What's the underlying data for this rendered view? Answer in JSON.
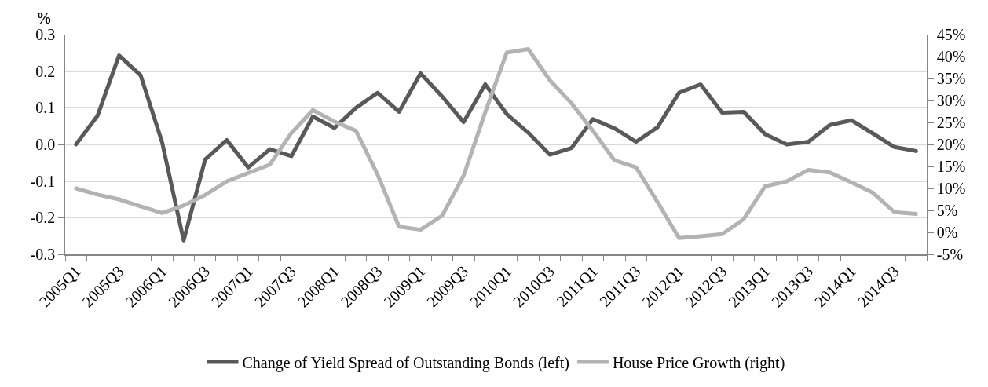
{
  "chart_data": {
    "type": "line",
    "ylabel": "%",
    "categories": [
      "2005Q1",
      null,
      "2005Q3",
      null,
      "2006Q1",
      null,
      "2006Q3",
      null,
      "2007Q1",
      null,
      "2007Q3",
      null,
      "2008Q1",
      null,
      "2008Q3",
      null,
      "2009Q1",
      null,
      "2009Q3",
      null,
      "2010Q1",
      null,
      "2010Q3",
      null,
      "2011Q1",
      null,
      "2011Q3",
      null,
      "2012Q1",
      null,
      "2012Q3",
      null,
      "2013Q1",
      null,
      "2013Q3",
      null,
      "2014Q1",
      null,
      "2014Q3",
      null
    ],
    "series": [
      {
        "name": "Change of Yield Spread of Outstanding Bonds (left)",
        "color": "#595959",
        "values": [
          0.0,
          0.078,
          0.243,
          0.189,
          0.006,
          -0.262,
          -0.041,
          0.012,
          -0.063,
          -0.013,
          -0.032,
          0.076,
          0.045,
          0.1,
          0.141,
          0.089,
          0.194,
          0.131,
          0.061,
          0.164,
          0.083,
          0.032,
          -0.028,
          -0.01,
          0.069,
          0.044,
          0.007,
          0.047,
          0.141,
          0.164,
          0.087,
          0.089,
          0.028,
          0.0,
          0.007,
          0.053,
          0.066,
          0.03,
          -0.007,
          -0.018
        ]
      },
      {
        "name": "House Price Growth (right)",
        "color": "#b3b3b3",
        "axis": "y2",
        "values": [
          10.0,
          8.6,
          7.5,
          5.9,
          4.4,
          6.1,
          8.5,
          11.6,
          13.5,
          15.4,
          22.6,
          27.8,
          25.2,
          23.1,
          13.2,
          1.3,
          0.6,
          3.8,
          12.9,
          27.3,
          40.9,
          41.7,
          34.6,
          29.4,
          23.1,
          16.4,
          14.8,
          6.9,
          -1.3,
          -0.9,
          -0.4,
          3.0,
          10.5,
          11.6,
          14.2,
          13.6,
          11.4,
          9.0,
          4.6,
          4.2
        ]
      }
    ],
    "ylim": [
      -0.3,
      0.3
    ],
    "yticks": [
      {
        "value": -0.3,
        "label": "-0.3"
      },
      {
        "value": -0.2,
        "label": "-0.2"
      },
      {
        "value": -0.1,
        "label": "-0.1"
      },
      {
        "value": 0,
        "label": "0.0"
      },
      {
        "value": 0.1,
        "label": "0.1"
      },
      {
        "value": 0.2,
        "label": "0.2"
      },
      {
        "value": 0.3,
        "label": "0.3"
      }
    ],
    "y2lim": [
      -5,
      45
    ],
    "y2ticks": [
      {
        "value": -5,
        "label": "-5%"
      },
      {
        "value": 0,
        "label": "0%"
      },
      {
        "value": 5,
        "label": "5%"
      },
      {
        "value": 10,
        "label": "10%"
      },
      {
        "value": 15,
        "label": "15%"
      },
      {
        "value": 20,
        "label": "20%"
      },
      {
        "value": 25,
        "label": "25%"
      },
      {
        "value": 30,
        "label": "30%"
      },
      {
        "value": 35,
        "label": "35%"
      },
      {
        "value": 40,
        "label": "40%"
      },
      {
        "value": 45,
        "label": "45%"
      }
    ],
    "grid": "y",
    "legend": "bottom",
    "marker": "none",
    "line_style": "solid"
  }
}
